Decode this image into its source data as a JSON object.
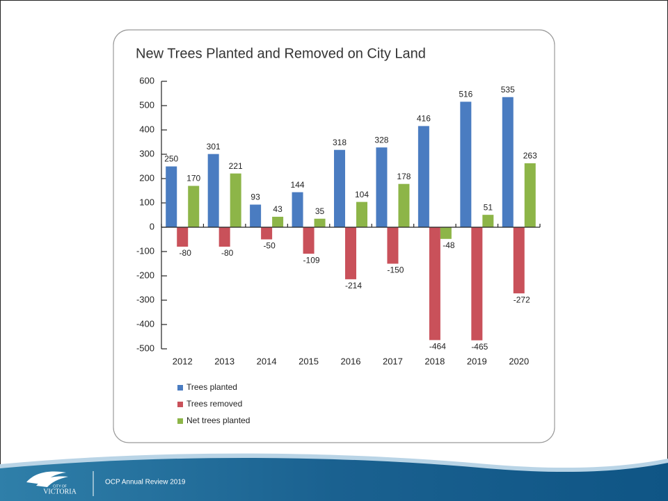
{
  "chart_data": {
    "type": "bar",
    "title": "New Trees Planted and Removed on City Land",
    "categories": [
      "2012",
      "2013",
      "2014",
      "2015",
      "2016",
      "2017",
      "2018",
      "2019",
      "2020"
    ],
    "series": [
      {
        "name": "Trees planted",
        "color": "#4a7cc1",
        "values": [
          250,
          301,
          93,
          144,
          318,
          328,
          416,
          516,
          535
        ]
      },
      {
        "name": "Trees removed",
        "color": "#c9515a",
        "values": [
          -80,
          -80,
          -50,
          -109,
          -214,
          -150,
          -464,
          -465,
          -272
        ]
      },
      {
        "name": "Net trees planted",
        "color": "#8db548",
        "values": [
          170,
          221,
          43,
          35,
          104,
          178,
          -48,
          51,
          263
        ]
      }
    ],
    "ylim": [
      -500,
      600
    ],
    "yticks": [
      -500,
      -400,
      -300,
      -200,
      -100,
      0,
      100,
      200,
      300,
      400,
      500,
      600
    ],
    "grid": false,
    "legend": "bottom-left",
    "data_labels": true
  },
  "footer": {
    "logo_small": "CITY OF",
    "logo_name": "VICTORIA",
    "text": "OCP Annual Review 2019"
  }
}
